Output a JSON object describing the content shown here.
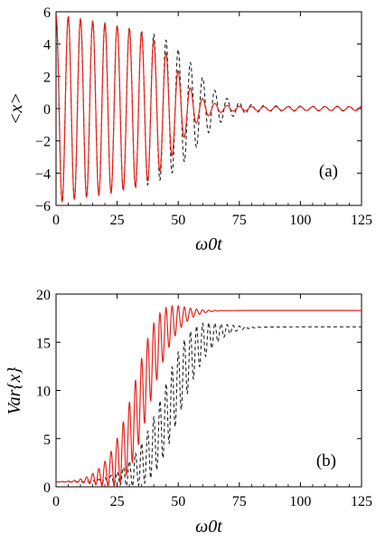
{
  "chart_data": [
    {
      "type": "line",
      "panel_label": "(a)",
      "xlabel": "ω0t",
      "ylabel": "<x>",
      "xlim": [
        0,
        125
      ],
      "ylim": [
        -6,
        6
      ],
      "xticks": [
        "0",
        "25",
        "50",
        "75",
        "100",
        "125"
      ],
      "yticks": [
        "−6",
        "−4",
        "−2",
        "0",
        "2",
        "4",
        "6"
      ],
      "grid": false,
      "series": [
        {
          "style": "solid",
          "color": "#e8231b",
          "description_values": {
            "form": "damped cosine",
            "amplitude_start": 5.7,
            "period": 5.0,
            "decay_center": 50,
            "decay_width": 15,
            "residual_amplitude": 0.12
          }
        },
        {
          "style": "dashed",
          "color": "#222222",
          "description_values": {
            "form": "damped cosine",
            "amplitude_start": 5.7,
            "period": 5.0,
            "decay_center": 58,
            "decay_width": 18,
            "residual_amplitude": 0.15
          }
        }
      ]
    },
    {
      "type": "line",
      "panel_label": "(b)",
      "xlabel": "ω0t",
      "ylabel": "Var{x}",
      "xlim": [
        0,
        125
      ],
      "ylim": [
        0,
        20
      ],
      "xticks": [
        "0",
        "25",
        "50",
        "75",
        "100",
        "125"
      ],
      "yticks": [
        "0",
        "5",
        "10",
        "15",
        "20"
      ],
      "grid": false,
      "series": [
        {
          "style": "solid",
          "color": "#e8231b",
          "description_values": {
            "start": 0.5,
            "plateau": 18.3,
            "period": 2.5,
            "rise_center": 35,
            "rise_width": 11
          }
        },
        {
          "style": "dashed",
          "color": "#222222",
          "description_values": {
            "start": 0.5,
            "plateau": 16.6,
            "period": 2.5,
            "rise_center": 47,
            "rise_width": 13
          }
        }
      ]
    }
  ]
}
